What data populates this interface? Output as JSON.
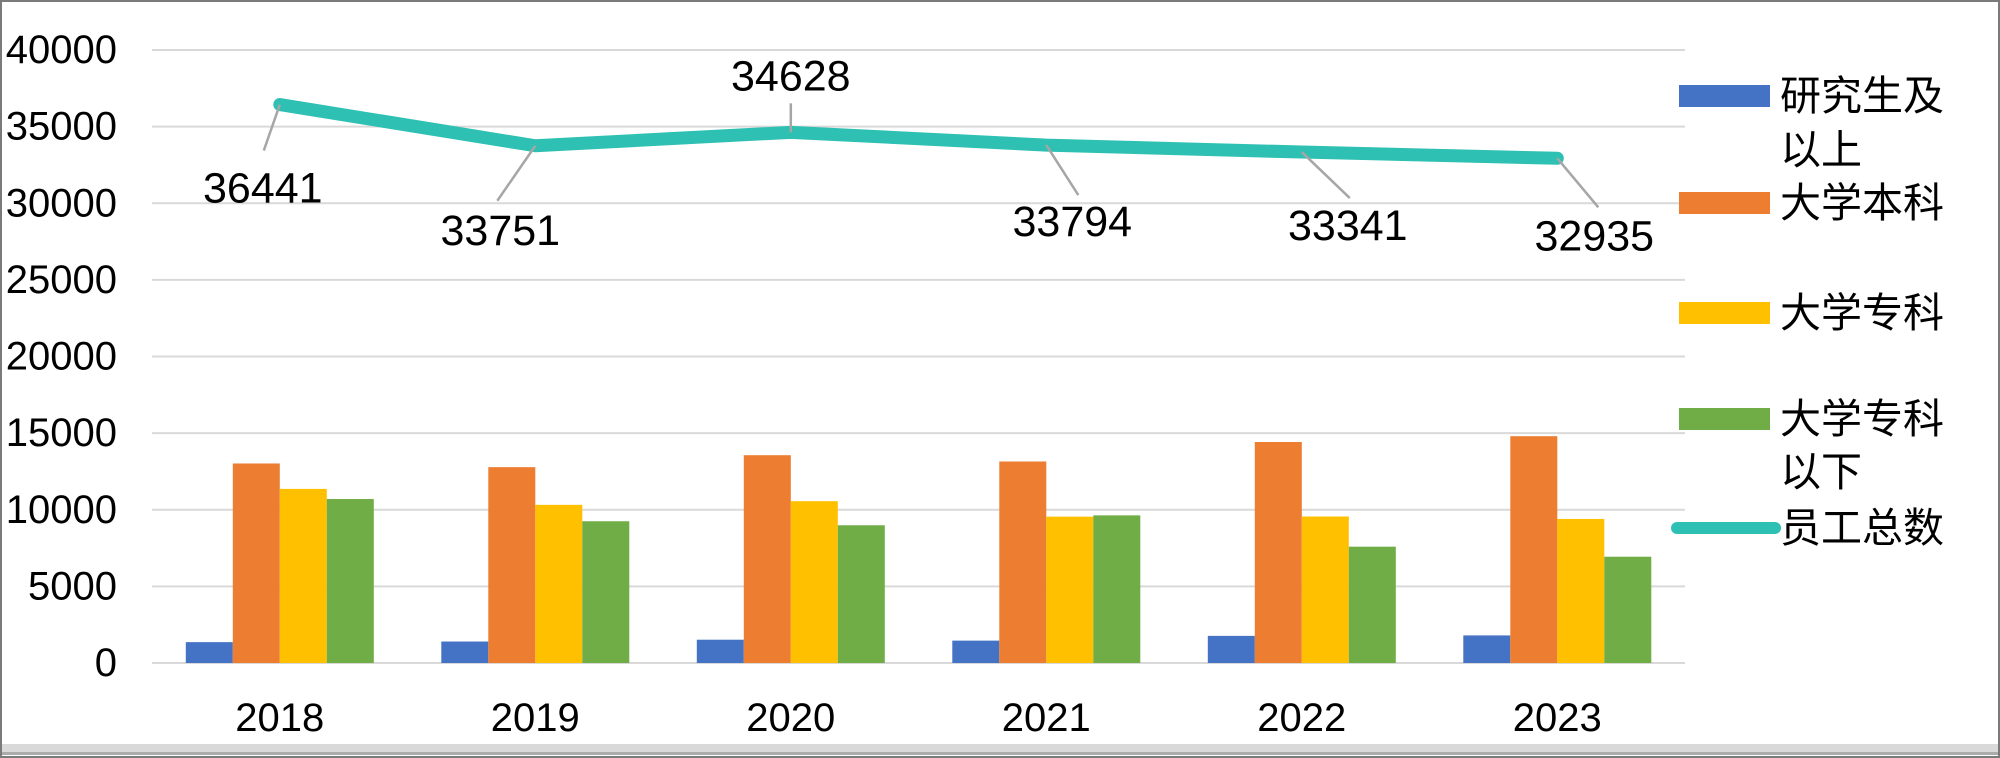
{
  "chart_data": {
    "type": "bar",
    "subtype": "clustered-bar-with-line-overlay",
    "categories": [
      "2018",
      "2019",
      "2020",
      "2021",
      "2022",
      "2023"
    ],
    "series": [
      {
        "name": "研究生及以上",
        "render": "bar",
        "color": "#4472C4",
        "values": [
          1361,
          1401,
          1520,
          1460,
          1770,
          1800
        ]
      },
      {
        "name": "大学本科",
        "render": "bar",
        "color": "#ED7D31",
        "values": [
          13020,
          12780,
          13560,
          13150,
          14420,
          14800
        ]
      },
      {
        "name": "大学专科",
        "render": "bar",
        "color": "#FFC000",
        "values": [
          11360,
          10320,
          10560,
          9550,
          9560,
          9400
        ]
      },
      {
        "name": "大学专科以下",
        "render": "bar",
        "color": "#70AD47",
        "values": [
          10700,
          9250,
          8988,
          9634,
          7591,
          6935
        ]
      },
      {
        "name": "员工总数",
        "render": "line",
        "color": "#2EC0B2",
        "values": [
          36441,
          33751,
          34628,
          33794,
          33341,
          32935
        ],
        "data_labels": [
          "36441",
          "33751",
          "34628",
          "33794",
          "33341",
          "32935"
        ]
      }
    ],
    "title": "",
    "xlabel": "",
    "ylabel": "",
    "ylim": [
      0,
      40000
    ],
    "ytick_step": 5000,
    "yticks": [
      "0",
      "5000",
      "10000",
      "15000",
      "20000",
      "25000",
      "30000",
      "35000",
      "40000"
    ],
    "grid": "horizontal",
    "legend_position": "right"
  },
  "legend": {
    "items": [
      {
        "series": "研究生及以上",
        "swatch": "rect",
        "color": "#4472C4",
        "lines": [
          "研究生及",
          "以上"
        ]
      },
      {
        "series": "大学本科",
        "swatch": "rect",
        "color": "#ED7D31",
        "lines": [
          "大学本科"
        ]
      },
      {
        "series": "大学专科",
        "swatch": "rect",
        "color": "#FFC000",
        "lines": [
          "大学专科"
        ]
      },
      {
        "series": "大学专科以下",
        "swatch": "rect",
        "color": "#70AD47",
        "lines": [
          "大学专科",
          "以下"
        ]
      },
      {
        "series": "员工总数",
        "swatch": "line",
        "color": "#2EC0B2",
        "lines": [
          "员工总数"
        ]
      }
    ]
  },
  "colors": {
    "background": "#ffffff",
    "gridline": "#D9D9D9",
    "leader_line": "#A6A6A6",
    "text": "#000000",
    "frame_border": "#7a7a7a",
    "bottom_strip": "#D9D9D9"
  }
}
